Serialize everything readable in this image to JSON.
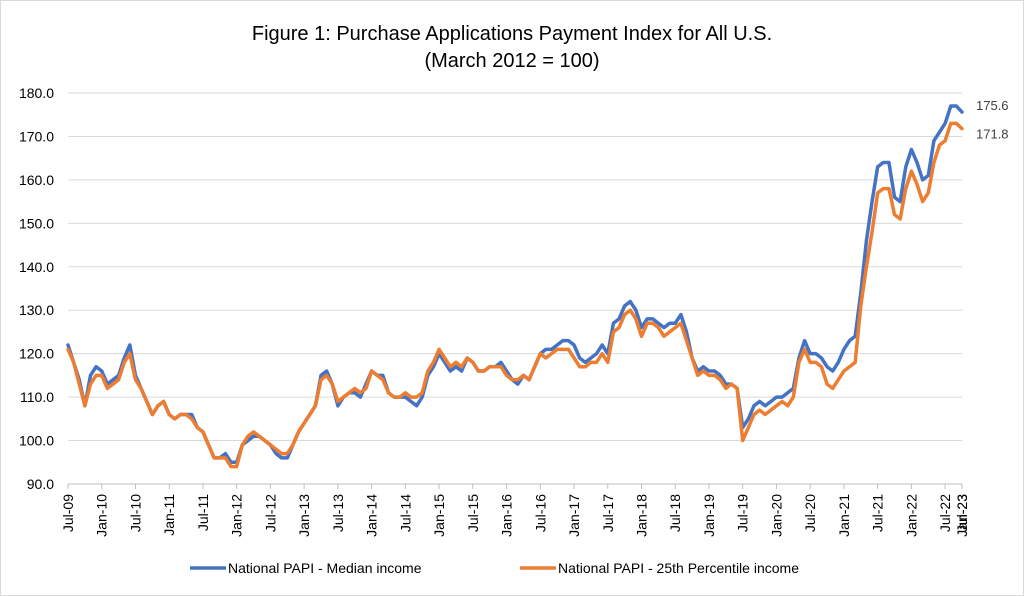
{
  "chart_data": {
    "type": "line",
    "title": "Figure 1: Purchase Applications Payment Index for All U.S.",
    "subtitle": "(March 2012 = 100)",
    "xlabel": "",
    "ylabel": "",
    "ylim": [
      90,
      180
    ],
    "y_ticks": [
      "90.0",
      "100.0",
      "110.0",
      "120.0",
      "130.0",
      "140.0",
      "150.0",
      "160.0",
      "170.0",
      "180.0"
    ],
    "x_ticks": [
      "Jul-09",
      "Jan-10",
      "Jul-10",
      "Jan-11",
      "Jul-11",
      "Jan-12",
      "Jul-12",
      "Jan-13",
      "Jul-13",
      "Jan-14",
      "Jul-14",
      "Jan-15",
      "Jul-15",
      "Jan-16",
      "Jul-16",
      "Jan-17",
      "Jul-17",
      "Jan-18",
      "Jul-18",
      "Jan-19",
      "Jul-19",
      "Jan-20",
      "Jul-20",
      "Jan-21",
      "Jul-21",
      "Jan-22",
      "Jul-22",
      "Jan-23",
      "Jul-23"
    ],
    "grid": true,
    "legend": "bottom",
    "x_start": "Jul-09",
    "series": [
      {
        "name": "National PAPI - Median income",
        "color": "#4472C4",
        "end_label": "175.6",
        "values": [
          122,
          118,
          114,
          108,
          115,
          117,
          116,
          113,
          114,
          115,
          119,
          122,
          115,
          112,
          109,
          106,
          108,
          109,
          106,
          105,
          106,
          106,
          106,
          103,
          102,
          99,
          96,
          96,
          97,
          95,
          95,
          99,
          100,
          101,
          101,
          100,
          99,
          97,
          96,
          96,
          99,
          102,
          104,
          106,
          108,
          115,
          116,
          113,
          108,
          110,
          111,
          111,
          110,
          113,
          116,
          115,
          115,
          111,
          110,
          110,
          110,
          109,
          108,
          110,
          115,
          117,
          120,
          118,
          116,
          117,
          116,
          119,
          118,
          116,
          116,
          117,
          117,
          118,
          116,
          114,
          113,
          115,
          114,
          117,
          120,
          121,
          121,
          122,
          123,
          123,
          122,
          119,
          118,
          119,
          120,
          122,
          120,
          127,
          128,
          131,
          132,
          130,
          126,
          128,
          128,
          127,
          126,
          127,
          127,
          129,
          125,
          119,
          116,
          117,
          116,
          116,
          115,
          113,
          113,
          112,
          103,
          105,
          108,
          109,
          108,
          109,
          110,
          110,
          111,
          112,
          119,
          123,
          120,
          120,
          119,
          117,
          116,
          118,
          121,
          123,
          124,
          134,
          146,
          155,
          163,
          164,
          164,
          156,
          155,
          163,
          167,
          164,
          160,
          161,
          169,
          171,
          173,
          177,
          177,
          175.6
        ],
        "end_x": "Jul-23"
      },
      {
        "name": "National PAPI - 25th Percentile income",
        "color": "#ED7D31",
        "end_label": "171.8",
        "values": [
          121,
          118,
          113,
          108,
          113,
          115,
          115,
          112,
          113,
          114,
          118,
          120,
          114,
          112,
          109,
          106,
          108,
          109,
          106,
          105,
          106,
          106,
          105,
          103,
          102,
          99,
          96,
          96,
          96,
          94,
          94,
          99,
          101,
          102,
          101,
          100,
          99,
          98,
          97,
          97,
          99,
          102,
          104,
          106,
          108,
          114,
          115,
          113,
          109,
          110,
          111,
          112,
          111,
          112,
          116,
          115,
          114,
          111,
          110,
          110,
          111,
          110,
          110,
          111,
          116,
          118,
          121,
          119,
          117,
          118,
          117,
          119,
          118,
          116,
          116,
          117,
          117,
          117,
          115,
          114,
          114,
          115,
          114,
          117,
          120,
          119,
          120,
          121,
          121,
          121,
          119,
          117,
          117,
          118,
          118,
          120,
          118,
          125,
          126,
          129,
          130,
          128,
          124,
          127,
          127,
          126,
          124,
          125,
          126,
          127,
          123,
          119,
          115,
          116,
          115,
          115,
          114,
          112,
          113,
          112,
          100,
          103,
          106,
          107,
          106,
          107,
          108,
          109,
          108,
          110,
          118,
          121,
          118,
          118,
          117,
          113,
          112,
          114,
          116,
          117,
          118,
          131,
          140,
          148,
          157,
          158,
          158,
          152,
          151,
          158,
          162,
          159,
          155,
          157,
          164,
          168,
          169,
          173,
          173,
          171.8
        ],
        "end_x": "Jul-23"
      }
    ]
  }
}
